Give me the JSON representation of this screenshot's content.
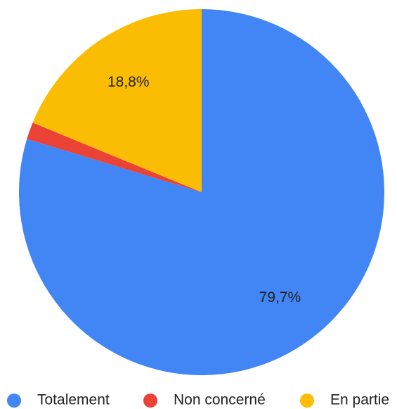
{
  "chart_data": {
    "type": "pie",
    "categories": [
      "Totalement",
      "Non concerné",
      "En partie"
    ],
    "values": [
      79.7,
      1.5,
      18.8
    ],
    "value_labels": [
      "79,7%",
      null,
      "18,8%"
    ],
    "colors": [
      "#4285f4",
      "#ea4335",
      "#fbbc04"
    ],
    "legend": "bottom"
  }
}
